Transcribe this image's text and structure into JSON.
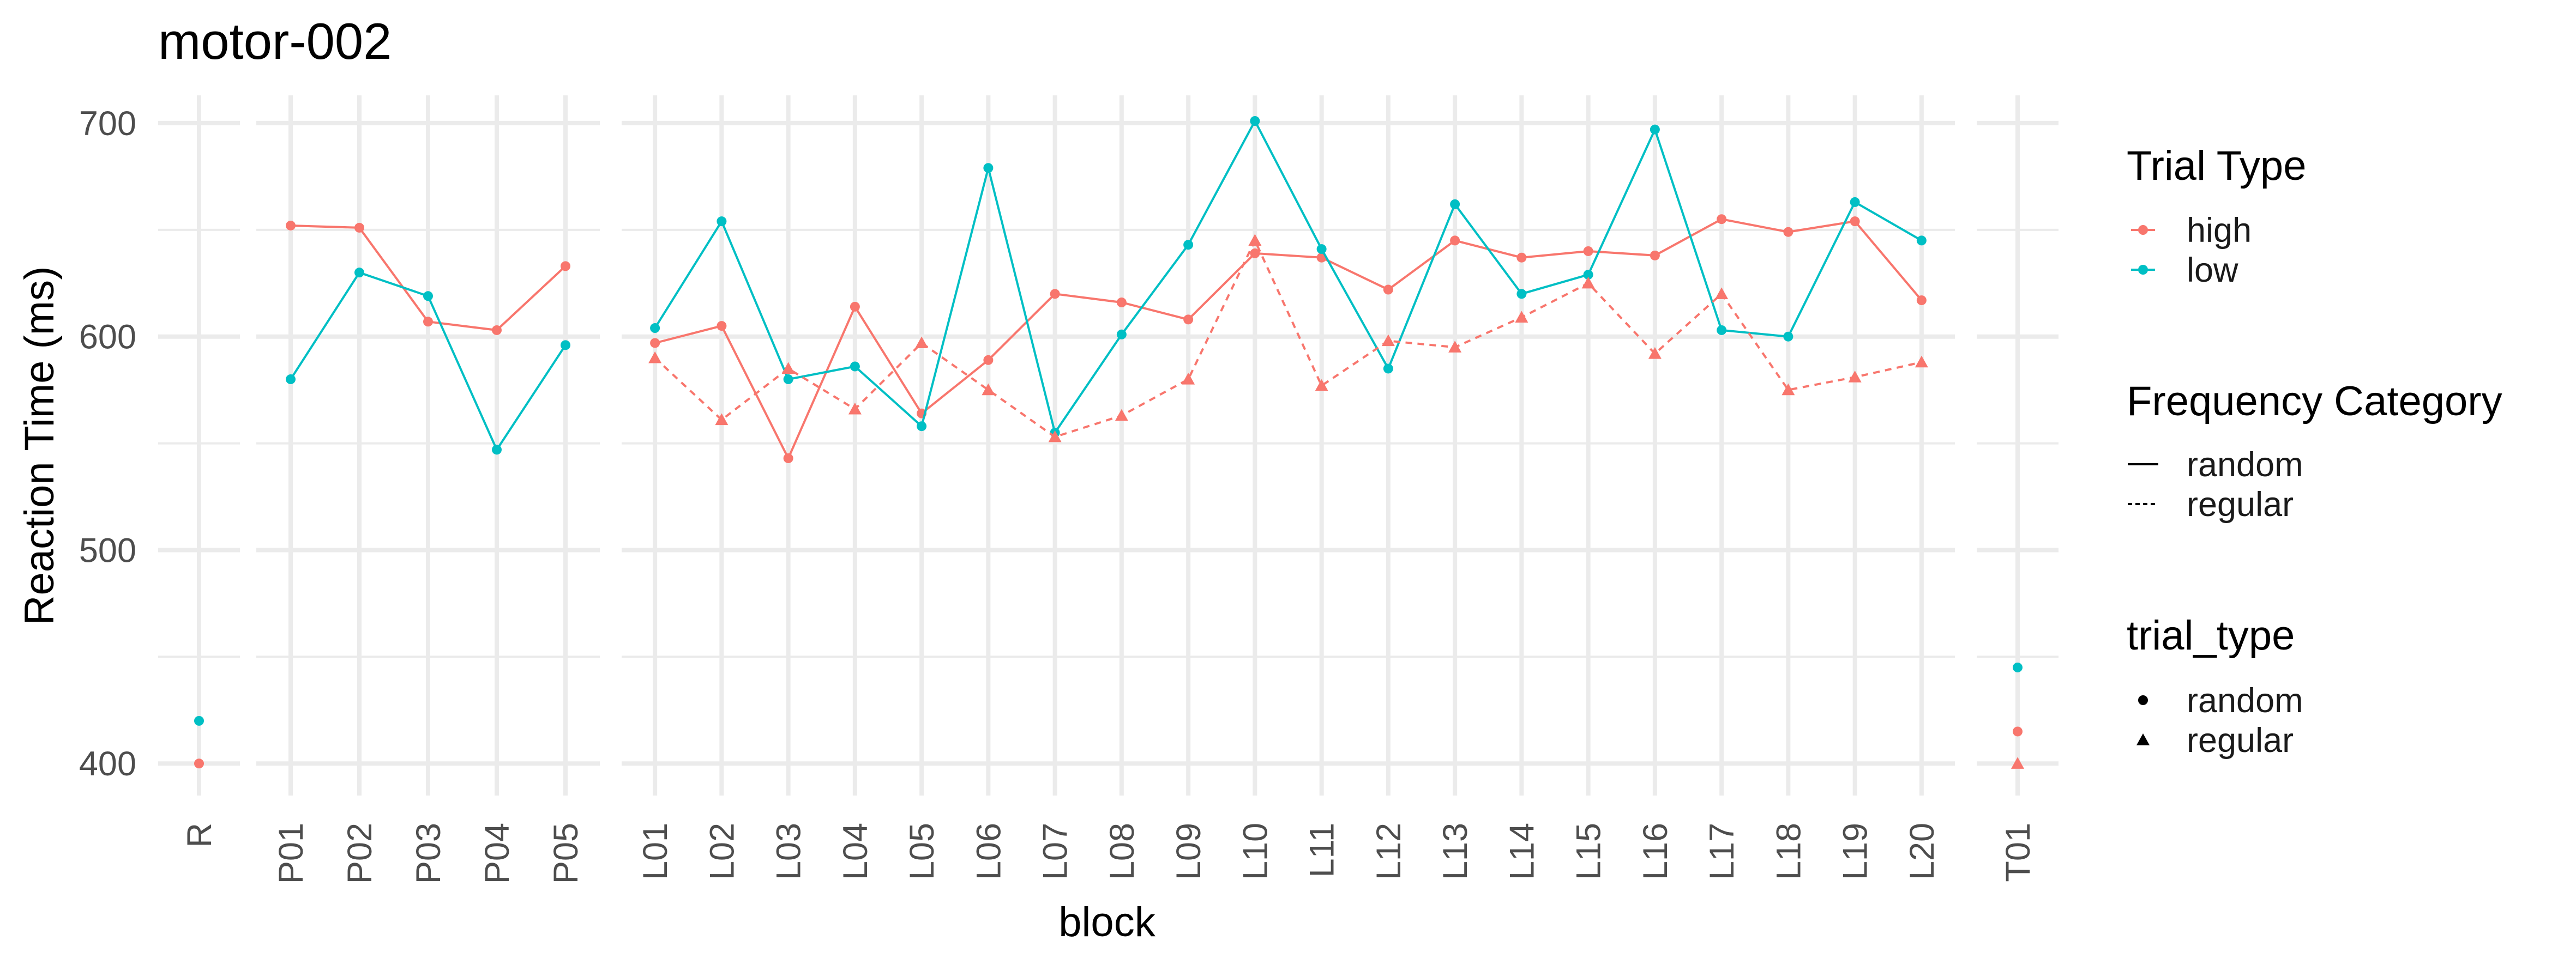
{
  "chart_data": {
    "type": "line",
    "title": "motor-002",
    "xlabel": "block",
    "ylabel": "Reaction Time (ms)",
    "ylim": [
      385,
      713
    ],
    "yticks": [
      400,
      500,
      600,
      700
    ],
    "grid": true,
    "legend_position": "right",
    "panels": [
      {
        "blocks": [
          "R"
        ]
      },
      {
        "blocks": [
          "P01",
          "P02",
          "P03",
          "P04",
          "P05"
        ]
      },
      {
        "blocks": [
          "L01",
          "L02",
          "L03",
          "L04",
          "L05",
          "L06",
          "L07",
          "L08",
          "L09",
          "L10",
          "L11",
          "L12",
          "L13",
          "L14",
          "L15",
          "L16",
          "L17",
          "L18",
          "L19",
          "L20"
        ]
      },
      {
        "blocks": [
          "T01"
        ]
      }
    ],
    "series": [
      {
        "trial_type": "high",
        "frequency_category": "random",
        "color": "#F8766D",
        "marker": "circle",
        "line": "solid",
        "points": [
          {
            "x": "R",
            "y": 400
          },
          {
            "x": "P01",
            "y": 652
          },
          {
            "x": "P02",
            "y": 651
          },
          {
            "x": "P03",
            "y": 607
          },
          {
            "x": "P04",
            "y": 603
          },
          {
            "x": "P05",
            "y": 633
          },
          {
            "x": "L01",
            "y": 597
          },
          {
            "x": "L02",
            "y": 605
          },
          {
            "x": "L03",
            "y": 543
          },
          {
            "x": "L04",
            "y": 614
          },
          {
            "x": "L05",
            "y": 564
          },
          {
            "x": "L06",
            "y": 589
          },
          {
            "x": "L07",
            "y": 620
          },
          {
            "x": "L08",
            "y": 616
          },
          {
            "x": "L09",
            "y": 608
          },
          {
            "x": "L10",
            "y": 639
          },
          {
            "x": "L11",
            "y": 637
          },
          {
            "x": "L12",
            "y": 622
          },
          {
            "x": "L13",
            "y": 645
          },
          {
            "x": "L14",
            "y": 637
          },
          {
            "x": "L15",
            "y": 640
          },
          {
            "x": "L16",
            "y": 638
          },
          {
            "x": "L17",
            "y": 655
          },
          {
            "x": "L18",
            "y": 649
          },
          {
            "x": "L19",
            "y": 654
          },
          {
            "x": "L20",
            "y": 617
          },
          {
            "x": "T01",
            "y": 415
          }
        ]
      },
      {
        "trial_type": "low",
        "frequency_category": "random",
        "color": "#00BFC4",
        "marker": "circle",
        "line": "solid",
        "points": [
          {
            "x": "R",
            "y": 420
          },
          {
            "x": "P01",
            "y": 580
          },
          {
            "x": "P02",
            "y": 630
          },
          {
            "x": "P03",
            "y": 619
          },
          {
            "x": "P04",
            "y": 547
          },
          {
            "x": "P05",
            "y": 596
          },
          {
            "x": "L01",
            "y": 604
          },
          {
            "x": "L02",
            "y": 654
          },
          {
            "x": "L03",
            "y": 580
          },
          {
            "x": "L04",
            "y": 586
          },
          {
            "x": "L05",
            "y": 558
          },
          {
            "x": "L06",
            "y": 679
          },
          {
            "x": "L07",
            "y": 555
          },
          {
            "x": "L08",
            "y": 601
          },
          {
            "x": "L09",
            "y": 643
          },
          {
            "x": "L10",
            "y": 701
          },
          {
            "x": "L11",
            "y": 641
          },
          {
            "x": "L12",
            "y": 585
          },
          {
            "x": "L13",
            "y": 662
          },
          {
            "x": "L14",
            "y": 620
          },
          {
            "x": "L15",
            "y": 629
          },
          {
            "x": "L16",
            "y": 697
          },
          {
            "x": "L17",
            "y": 603
          },
          {
            "x": "L18",
            "y": 600
          },
          {
            "x": "L19",
            "y": 663
          },
          {
            "x": "L20",
            "y": 645
          },
          {
            "x": "T01",
            "y": 445
          }
        ]
      },
      {
        "trial_type": "high",
        "frequency_category": "regular",
        "color": "#F8766D",
        "marker": "triangle",
        "line": "dashed",
        "points": [
          {
            "x": "L01",
            "y": 590
          },
          {
            "x": "L02",
            "y": 561
          },
          {
            "x": "L03",
            "y": 585
          },
          {
            "x": "L04",
            "y": 566
          },
          {
            "x": "L05",
            "y": 597
          },
          {
            "x": "L06",
            "y": 575
          },
          {
            "x": "L07",
            "y": 553
          },
          {
            "x": "L08",
            "y": 563
          },
          {
            "x": "L09",
            "y": 580
          },
          {
            "x": "L10",
            "y": 645
          },
          {
            "x": "L11",
            "y": 577
          },
          {
            "x": "L12",
            "y": 598
          },
          {
            "x": "L13",
            "y": 595
          },
          {
            "x": "L14",
            "y": 609
          },
          {
            "x": "L15",
            "y": 625
          },
          {
            "x": "L16",
            "y": 592
          },
          {
            "x": "L17",
            "y": 620
          },
          {
            "x": "L18",
            "y": 575
          },
          {
            "x": "L19",
            "y": 581
          },
          {
            "x": "L20",
            "y": 588
          },
          {
            "x": "T01",
            "y": 400
          }
        ]
      }
    ],
    "legends": [
      {
        "title": "Trial Type",
        "kind": "color",
        "items": [
          {
            "label": "high",
            "color": "#F8766D"
          },
          {
            "label": "low",
            "color": "#00BFC4"
          }
        ]
      },
      {
        "title": "Frequency Category",
        "kind": "linetype",
        "items": [
          {
            "label": "random",
            "line": "solid"
          },
          {
            "label": "regular",
            "line": "dashed"
          }
        ]
      },
      {
        "title": "trial_type",
        "kind": "shape",
        "items": [
          {
            "label": "random",
            "marker": "circle"
          },
          {
            "label": "regular",
            "marker": "triangle"
          }
        ]
      }
    ]
  }
}
